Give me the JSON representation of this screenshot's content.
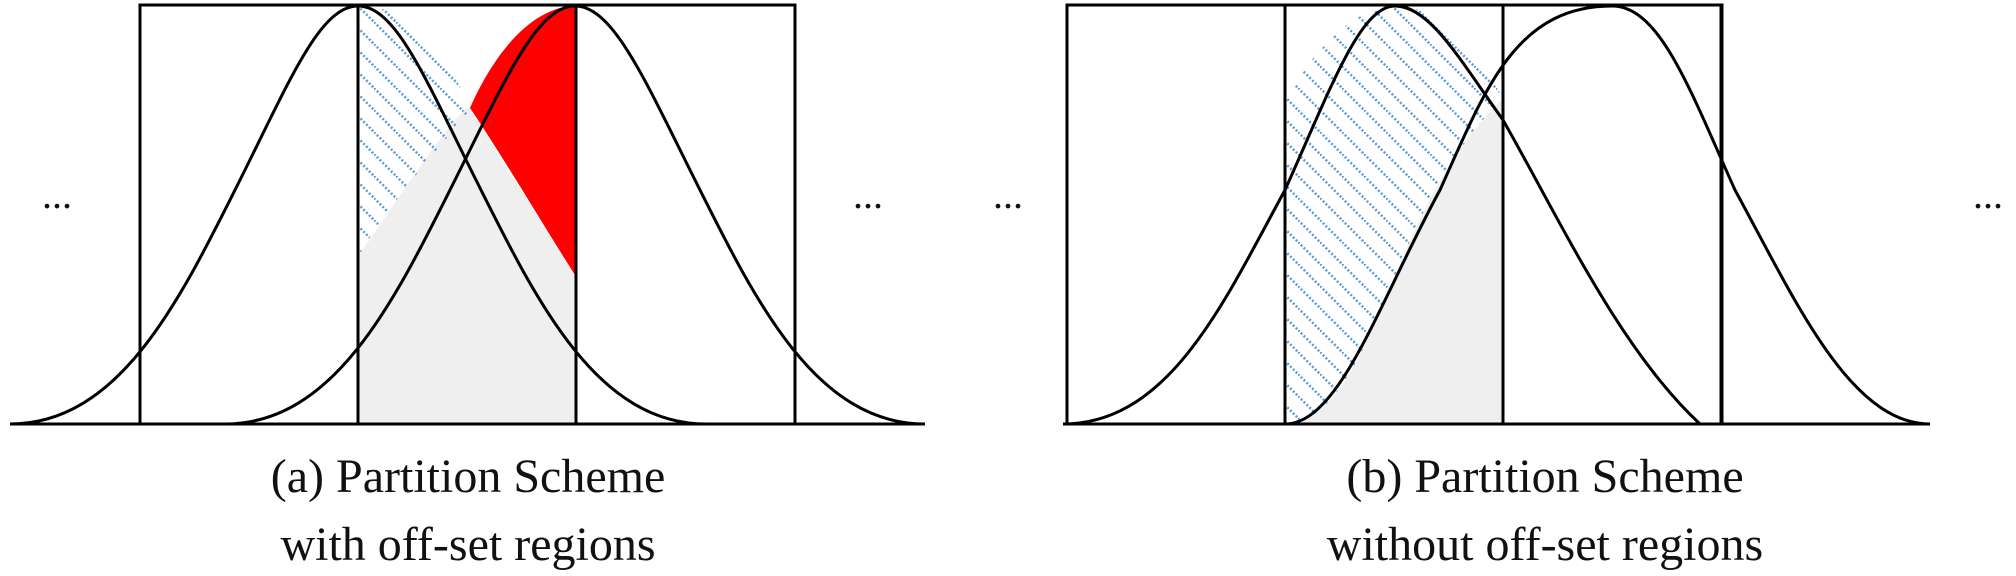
{
  "panels": [
    {
      "ellipsis_left": "...",
      "ellipsis_right": "...",
      "caption_line1": "(a) Partition Scheme",
      "caption_line2": "with off-set regions"
    },
    {
      "ellipsis_left": "...",
      "ellipsis_right": "...",
      "caption_line1": "(b) Partition Scheme",
      "caption_line2": "without off-set regions"
    }
  ],
  "colors": {
    "offset_region": "#ff0000",
    "shaded_region": "#efefef",
    "hatch": "#5b9bd5",
    "outline": "#000000"
  }
}
